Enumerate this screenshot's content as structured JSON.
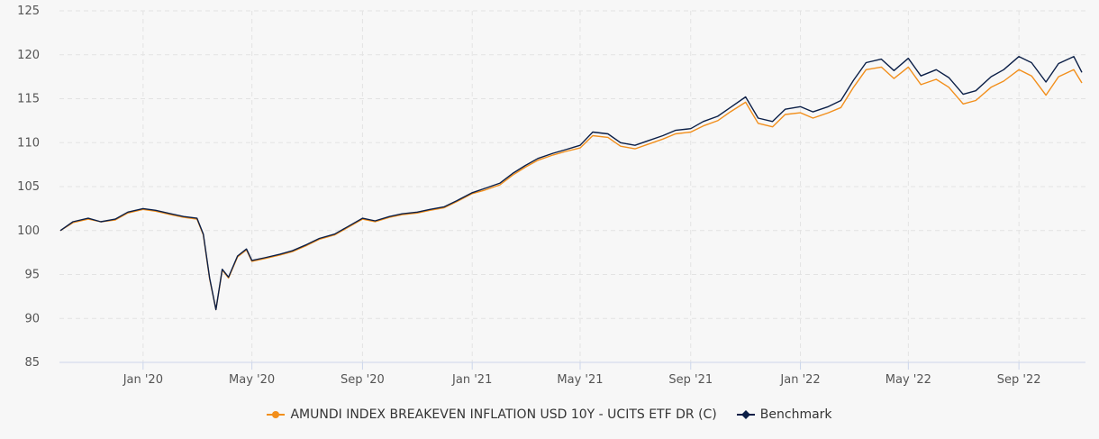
{
  "chart_data": {
    "type": "line",
    "title": "",
    "xlabel": "",
    "ylabel": "",
    "ylim": [
      85,
      125
    ],
    "yticks": [
      "85",
      "90",
      "95",
      "100",
      "105",
      "110",
      "115",
      "120",
      "125"
    ],
    "xlim": [
      "2019-09-30",
      "2022-11-14"
    ],
    "xticks": [
      {
        "label": "Jan '20",
        "date": "2020-01-01"
      },
      {
        "label": "May '20",
        "date": "2020-05-01"
      },
      {
        "label": "Sep '20",
        "date": "2020-09-01"
      },
      {
        "label": "Jan '21",
        "date": "2021-01-01"
      },
      {
        "label": "May '21",
        "date": "2021-05-01"
      },
      {
        "label": "Sep '21",
        "date": "2021-09-01"
      },
      {
        "label": "Jan '22",
        "date": "2022-01-01"
      },
      {
        "label": "May '22",
        "date": "2022-05-01"
      },
      {
        "label": "Sep '22",
        "date": "2022-09-01"
      }
    ],
    "grid": true,
    "legend_position": "bottom-center",
    "series": [
      {
        "name": "AMUNDI INDEX BREAKEVEN INFLATION USD 10Y - UCITS ETF DR (C)",
        "color": "#f28f1c",
        "marker": "circle",
        "points": [
          [
            "2019-10-01",
            100.0
          ],
          [
            "2019-10-15",
            100.9
          ],
          [
            "2019-11-01",
            101.3
          ],
          [
            "2019-11-15",
            101.0
          ],
          [
            "2019-12-01",
            101.2
          ],
          [
            "2019-12-15",
            102.0
          ],
          [
            "2020-01-01",
            102.4
          ],
          [
            "2020-01-15",
            102.2
          ],
          [
            "2020-02-01",
            101.8
          ],
          [
            "2020-02-15",
            101.5
          ],
          [
            "2020-03-01",
            101.3
          ],
          [
            "2020-03-08",
            99.5
          ],
          [
            "2020-03-15",
            94.5
          ],
          [
            "2020-03-22",
            91.0
          ],
          [
            "2020-03-29",
            95.5
          ],
          [
            "2020-04-05",
            94.6
          ],
          [
            "2020-04-15",
            97.0
          ],
          [
            "2020-04-25",
            97.8
          ],
          [
            "2020-05-01",
            96.5
          ],
          [
            "2020-05-15",
            96.8
          ],
          [
            "2020-06-01",
            97.2
          ],
          [
            "2020-06-15",
            97.6
          ],
          [
            "2020-07-01",
            98.3
          ],
          [
            "2020-07-15",
            99.0
          ],
          [
            "2020-08-01",
            99.5
          ],
          [
            "2020-08-15",
            100.3
          ],
          [
            "2020-09-01",
            101.3
          ],
          [
            "2020-09-15",
            101.0
          ],
          [
            "2020-10-01",
            101.5
          ],
          [
            "2020-10-15",
            101.8
          ],
          [
            "2020-11-01",
            102.0
          ],
          [
            "2020-11-15",
            102.3
          ],
          [
            "2020-12-01",
            102.6
          ],
          [
            "2020-12-15",
            103.3
          ],
          [
            "2021-01-01",
            104.2
          ],
          [
            "2021-01-15",
            104.6
          ],
          [
            "2021-02-01",
            105.2
          ],
          [
            "2021-02-15",
            106.3
          ],
          [
            "2021-03-01",
            107.2
          ],
          [
            "2021-03-15",
            108.0
          ],
          [
            "2021-04-01",
            108.6
          ],
          [
            "2021-04-15",
            109.0
          ],
          [
            "2021-05-01",
            109.4
          ],
          [
            "2021-05-15",
            110.8
          ],
          [
            "2021-06-01",
            110.6
          ],
          [
            "2021-06-15",
            109.6
          ],
          [
            "2021-07-01",
            109.3
          ],
          [
            "2021-07-15",
            109.8
          ],
          [
            "2021-08-01",
            110.4
          ],
          [
            "2021-08-15",
            111.0
          ],
          [
            "2021-09-01",
            111.2
          ],
          [
            "2021-09-15",
            111.9
          ],
          [
            "2021-10-01",
            112.5
          ],
          [
            "2021-10-15",
            113.5
          ],
          [
            "2021-11-01",
            114.6
          ],
          [
            "2021-11-15",
            112.2
          ],
          [
            "2021-12-01",
            111.8
          ],
          [
            "2021-12-15",
            113.2
          ],
          [
            "2022-01-01",
            113.4
          ],
          [
            "2022-01-15",
            112.8
          ],
          [
            "2022-02-01",
            113.4
          ],
          [
            "2022-02-15",
            114.0
          ],
          [
            "2022-03-01",
            116.3
          ],
          [
            "2022-03-15",
            118.3
          ],
          [
            "2022-04-01",
            118.6
          ],
          [
            "2022-04-15",
            117.3
          ],
          [
            "2022-05-01",
            118.6
          ],
          [
            "2022-05-15",
            116.6
          ],
          [
            "2022-06-01",
            117.2
          ],
          [
            "2022-06-15",
            116.3
          ],
          [
            "2022-07-01",
            114.4
          ],
          [
            "2022-07-15",
            114.8
          ],
          [
            "2022-08-01",
            116.3
          ],
          [
            "2022-08-15",
            117.0
          ],
          [
            "2022-09-01",
            118.3
          ],
          [
            "2022-09-15",
            117.6
          ],
          [
            "2022-10-01",
            115.4
          ],
          [
            "2022-10-15",
            117.5
          ],
          [
            "2022-11-01",
            118.3
          ],
          [
            "2022-11-10",
            116.8
          ]
        ]
      },
      {
        "name": "Benchmark",
        "color": "#0b1f47",
        "marker": "diamond",
        "points": [
          [
            "2019-10-01",
            100.0
          ],
          [
            "2019-10-15",
            101.0
          ],
          [
            "2019-11-01",
            101.4
          ],
          [
            "2019-11-15",
            101.0
          ],
          [
            "2019-12-01",
            101.3
          ],
          [
            "2019-12-15",
            102.1
          ],
          [
            "2020-01-01",
            102.5
          ],
          [
            "2020-01-15",
            102.3
          ],
          [
            "2020-02-01",
            101.9
          ],
          [
            "2020-02-15",
            101.6
          ],
          [
            "2020-03-01",
            101.4
          ],
          [
            "2020-03-08",
            99.6
          ],
          [
            "2020-03-15",
            94.6
          ],
          [
            "2020-03-22",
            91.0
          ],
          [
            "2020-03-29",
            95.6
          ],
          [
            "2020-04-05",
            94.7
          ],
          [
            "2020-04-15",
            97.1
          ],
          [
            "2020-04-25",
            97.9
          ],
          [
            "2020-05-01",
            96.6
          ],
          [
            "2020-05-15",
            96.9
          ],
          [
            "2020-06-01",
            97.3
          ],
          [
            "2020-06-15",
            97.7
          ],
          [
            "2020-07-01",
            98.4
          ],
          [
            "2020-07-15",
            99.1
          ],
          [
            "2020-08-01",
            99.6
          ],
          [
            "2020-08-15",
            100.4
          ],
          [
            "2020-09-01",
            101.4
          ],
          [
            "2020-09-15",
            101.1
          ],
          [
            "2020-10-01",
            101.6
          ],
          [
            "2020-10-15",
            101.9
          ],
          [
            "2020-11-01",
            102.1
          ],
          [
            "2020-11-15",
            102.4
          ],
          [
            "2020-12-01",
            102.7
          ],
          [
            "2020-12-15",
            103.4
          ],
          [
            "2021-01-01",
            104.3
          ],
          [
            "2021-01-15",
            104.8
          ],
          [
            "2021-02-01",
            105.4
          ],
          [
            "2021-02-15",
            106.5
          ],
          [
            "2021-03-01",
            107.4
          ],
          [
            "2021-03-15",
            108.2
          ],
          [
            "2021-04-01",
            108.8
          ],
          [
            "2021-04-15",
            109.2
          ],
          [
            "2021-05-01",
            109.7
          ],
          [
            "2021-05-15",
            111.2
          ],
          [
            "2021-06-01",
            111.0
          ],
          [
            "2021-06-15",
            110.0
          ],
          [
            "2021-07-01",
            109.7
          ],
          [
            "2021-07-15",
            110.2
          ],
          [
            "2021-08-01",
            110.8
          ],
          [
            "2021-08-15",
            111.4
          ],
          [
            "2021-09-01",
            111.6
          ],
          [
            "2021-09-15",
            112.4
          ],
          [
            "2021-10-01",
            113.0
          ],
          [
            "2021-10-15",
            114.0
          ],
          [
            "2021-11-01",
            115.2
          ],
          [
            "2021-11-15",
            112.8
          ],
          [
            "2021-12-01",
            112.4
          ],
          [
            "2021-12-15",
            113.8
          ],
          [
            "2022-01-01",
            114.1
          ],
          [
            "2022-01-15",
            113.5
          ],
          [
            "2022-02-01",
            114.1
          ],
          [
            "2022-02-15",
            114.8
          ],
          [
            "2022-03-01",
            117.1
          ],
          [
            "2022-03-15",
            119.1
          ],
          [
            "2022-04-01",
            119.5
          ],
          [
            "2022-04-15",
            118.2
          ],
          [
            "2022-05-01",
            119.6
          ],
          [
            "2022-05-15",
            117.6
          ],
          [
            "2022-06-01",
            118.3
          ],
          [
            "2022-06-15",
            117.4
          ],
          [
            "2022-07-01",
            115.5
          ],
          [
            "2022-07-15",
            115.9
          ],
          [
            "2022-08-01",
            117.5
          ],
          [
            "2022-08-15",
            118.3
          ],
          [
            "2022-09-01",
            119.8
          ],
          [
            "2022-09-15",
            119.1
          ],
          [
            "2022-10-01",
            116.9
          ],
          [
            "2022-10-15",
            119.0
          ],
          [
            "2022-11-01",
            119.8
          ],
          [
            "2022-11-10",
            118.0
          ]
        ]
      }
    ]
  }
}
